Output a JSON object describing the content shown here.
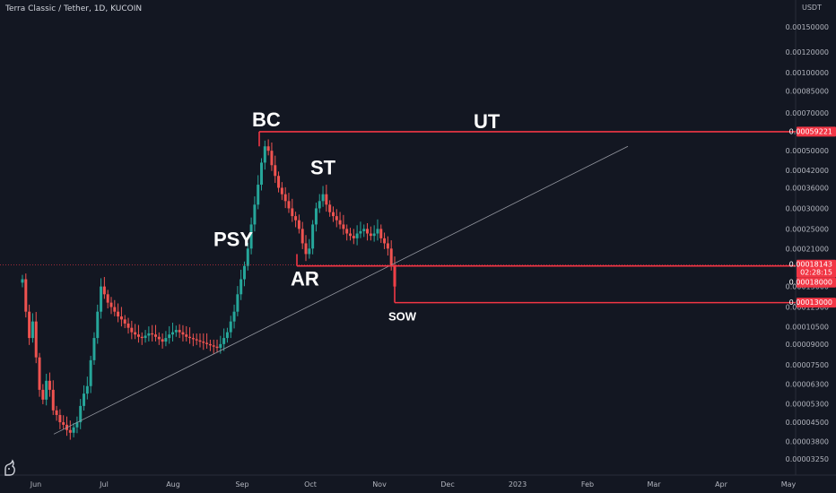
{
  "header": {
    "symbol": "Terra Classic / Tether, 1D, KUCOIN",
    "currency": "USDT"
  },
  "colors": {
    "background": "#131722",
    "bull": "#26a69a",
    "bear": "#ef5350",
    "level_line": "#f23645",
    "trendline": "#9598a1",
    "ut_text": "#6a6d78"
  },
  "logo_icon": "tradingview-logo-icon",
  "chart_data": {
    "type": "candlestick",
    "y_scale": "log",
    "ylim": [
      3.1e-06,
      0.00018
    ],
    "y_ticks": [
      {
        "label": "0.00150000",
        "value": 0.0015
      },
      {
        "label": "0.00120000",
        "value": 0.0012
      },
      {
        "label": "0.00100000",
        "value": 0.001
      },
      {
        "label": "0.00085000",
        "value": 0.00085
      },
      {
        "label": "0.00070000",
        "value": 0.0007
      },
      {
        "label": "0.00050000",
        "value": 0.0005
      },
      {
        "label": "0.00042000",
        "value": 0.00042
      },
      {
        "label": "0.00036000",
        "value": 0.00036
      },
      {
        "label": "0.00030000",
        "value": 0.0003
      },
      {
        "label": "0.00025000",
        "value": 0.00025
      },
      {
        "label": "0.00021000",
        "value": 0.00021
      },
      {
        "label": "0.00015000",
        "value": 0.00015
      },
      {
        "label": "0.00012500",
        "value": 0.000125
      },
      {
        "label": "0.00010500",
        "value": 0.000105
      },
      {
        "label": "0.00009000",
        "value": 9e-05
      },
      {
        "label": "0.00007500",
        "value": 7.5e-05
      },
      {
        "label": "0.00006300",
        "value": 6.3e-05
      },
      {
        "label": "0.00005300",
        "value": 5.3e-05
      },
      {
        "label": "0.00004500",
        "value": 4.5e-05
      },
      {
        "label": "0.00003800",
        "value": 3.8e-05
      },
      {
        "label": "0.00003250",
        "value": 3.25e-05
      }
    ],
    "x_ticks": [
      "Jun",
      "Jul",
      "Aug",
      "Sep",
      "Oct",
      "Nov",
      "Dec",
      "2023",
      "Feb",
      "Mar",
      "Apr",
      "May"
    ],
    "price_tags": [
      {
        "label": "0.00059221",
        "value": 0.00059221
      },
      {
        "label": "0.00018143",
        "sub": "02:28:15",
        "value": 0.00018143
      },
      {
        "label": "0.00018000",
        "value": 0.00018
      },
      {
        "label": "0.00013000",
        "value": 0.00013
      }
    ],
    "levels": [
      {
        "name": "BC level",
        "value": 0.00059221,
        "from": "Sep"
      },
      {
        "name": "AR level",
        "value": 0.00018,
        "from": "Oct"
      },
      {
        "name": "SOW level",
        "value": 0.00013,
        "from": "Nov"
      }
    ],
    "annotations": [
      "BC",
      "ST",
      "PSY",
      "AR",
      "UT",
      "SOW"
    ],
    "trendline": {
      "from_month": "Jun",
      "from_value": 4.05e-05,
      "to_month": "Jan",
      "to_value": 0.00052
    },
    "series_close": [
      0.00016,
      0.00012,
      9.5e-05,
      0.00011,
      8e-05,
      6e-05,
      5.5e-05,
      6.5e-05,
      6e-05,
      5e-05,
      4.8e-05,
      4.5e-05,
      4.4e-05,
      4.2e-05,
      4.1e-05,
      4.3e-05,
      4.5e-05,
      5.2e-05,
      5.8e-05,
      6.2e-05,
      7.8e-05,
      9.5e-05,
      0.00012,
      0.00015,
      0.00014,
      0.00013,
      0.000125,
      0.00012,
      0.000115,
      0.000112,
      0.000108,
      0.000104,
      0.0001,
      9.8e-05,
      9.6e-05,
      9.5e-05,
      9.7e-05,
      9.9e-05,
      9.8e-05,
      9.6e-05,
      9.4e-05,
      9.2e-05,
      9.5e-05,
      9.8e-05,
      0.0001,
      0.000102,
      0.0001,
      9.8e-05,
      9.6e-05,
      9.5e-05,
      9.4e-05,
      9.3e-05,
      9.2e-05,
      9.1e-05,
      9e-05,
      8.9e-05,
      8.8e-05,
      8.7e-05,
      9e-05,
      9.5e-05,
      0.0001,
      0.00011,
      0.00012,
      0.00014,
      0.00016,
      0.00018,
      0.00021,
      0.00026,
      0.00031,
      0.00037,
      0.00045,
      0.00052,
      0.0005,
      0.00044,
      0.0004,
      0.00036,
      0.00034,
      0.00032,
      0.0003,
      0.00028,
      0.00027,
      0.00025,
      0.00022,
      0.0002,
      0.00021,
      0.00026,
      0.0003,
      0.00032,
      0.00034,
      0.00031,
      0.00029,
      0.00028,
      0.00027,
      0.00026,
      0.00025,
      0.00024,
      0.000235,
      0.00023,
      0.00024,
      0.000245,
      0.00025,
      0.00024,
      0.000235,
      0.00024,
      0.00025,
      0.00023,
      0.00022,
      0.00021,
      0.00018,
      0.00015
    ]
  }
}
